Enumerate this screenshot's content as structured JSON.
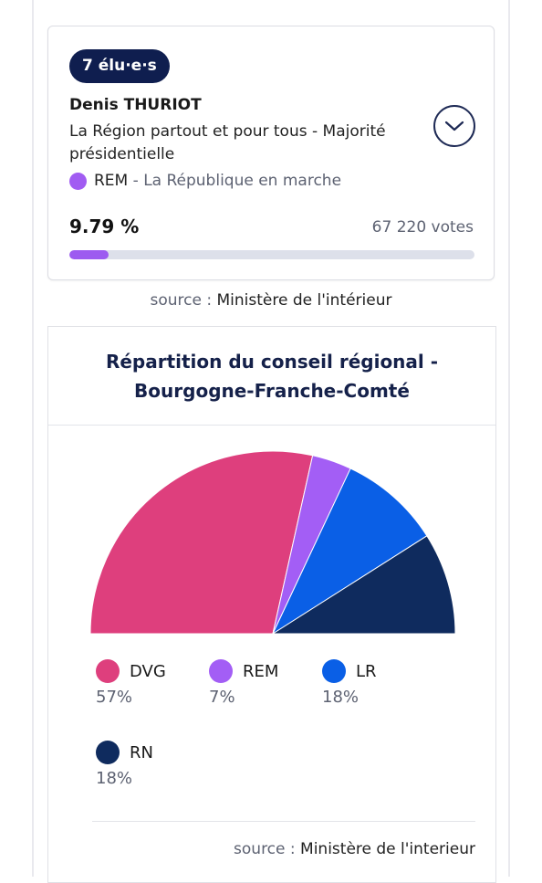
{
  "candidate": {
    "elected_badge": "7 élu·e·s",
    "name": "Denis THURIOT",
    "list_name": "La Région partout et pour tous - Majorité présidentielle",
    "party_code": "REM",
    "party_separator": " - ",
    "party_full": "La République en marche",
    "party_color": "#a15cf2",
    "percentage": "9.79 %",
    "percentage_value": 9.79,
    "votes": "67 220 votes",
    "expand_icon": "chevron-down-icon"
  },
  "source_top": {
    "label": "source : ",
    "value": "Ministère de l'intérieur"
  },
  "council": {
    "title_line1": "Répartition du conseil régional -",
    "title_line2": "Bourgogne-Franche-Comté",
    "legend": [
      {
        "name": "DVG",
        "pct": "57%",
        "color": "#de3f7d"
      },
      {
        "name": "REM",
        "pct": "7%",
        "color": "#a35ef5"
      },
      {
        "name": "LR",
        "pct": "18%",
        "color": "#0a5fe6"
      },
      {
        "name": "RN",
        "pct": "18%",
        "color": "#0f2b5e"
      }
    ]
  },
  "source_bottom": {
    "label": "source : ",
    "value": "Ministère de l'interieur"
  },
  "chart_data": {
    "type": "pie",
    "subtype": "half-donut-parliament",
    "title": "Répartition du conseil régional - Bourgogne-Franche-Comté",
    "categories": [
      "DVG",
      "REM",
      "LR",
      "RN"
    ],
    "values": [
      57,
      7,
      18,
      18
    ],
    "colors": [
      "#de3f7d",
      "#a35ef5",
      "#0a5fe6",
      "#0f2b5e"
    ],
    "legend_position": "bottom"
  }
}
